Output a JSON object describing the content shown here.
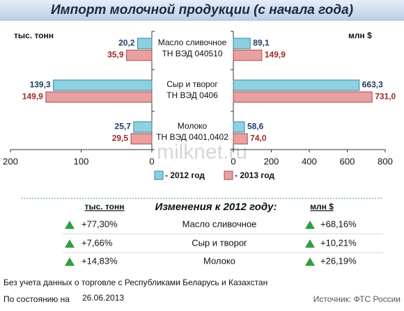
{
  "chart_data": {
    "type": "butterfly",
    "title": "Импорт молочной продукции (с начала года)",
    "categories": [
      "Масло сливочное",
      "Сыр и творог",
      "Молоко"
    ],
    "category_codes": [
      "ТН ВЭД 040510",
      "ТН ВЭД 0406",
      "ТН ВЭД 0401,0402"
    ],
    "series": [
      {
        "name": "- 2012 год",
        "color": "#8fd0e0",
        "stroke": "#2a8aa8",
        "label_color": "#1c3f66"
      },
      {
        "name": "- 2013 год",
        "color": "#e8a0a0",
        "stroke": "#b04848",
        "label_color": "#a02828"
      }
    ],
    "panels": [
      {
        "axis_label": "тыс. тонн",
        "direction": "left",
        "xlim": [
          0,
          200
        ],
        "xticks": [
          0,
          100,
          200
        ],
        "values": [
          [
            20.2,
            139.3,
            25.7
          ],
          [
            35.9,
            149.9,
            29.5
          ]
        ],
        "value_labels": [
          [
            "20,2",
            "139,3",
            "25,7"
          ],
          [
            "35,9",
            "149,9",
            "29,5"
          ]
        ]
      },
      {
        "axis_label": "млн $",
        "direction": "right",
        "xlim": [
          0,
          800
        ],
        "xticks": [
          0,
          200,
          400,
          600,
          800
        ],
        "values": [
          [
            89.1,
            663.3,
            58.6
          ],
          [
            149.9,
            731.0,
            74.0
          ]
        ],
        "value_labels": [
          [
            "89,1",
            "663,3",
            "58,6"
          ],
          [
            "149,9",
            "731,0",
            "74,0"
          ]
        ]
      }
    ],
    "watermark": "milknet.ru"
  },
  "changes": {
    "title": "Изменения к 2012 году:",
    "left_header": "тыс. тонн",
    "right_header": "млн $",
    "rows": [
      [
        "+77,30%",
        "Масло сливочное",
        "+68,16%"
      ],
      [
        "+7,66%",
        "Сыр и творог",
        "+10,21%"
      ],
      [
        "+14,83%",
        "Молоко",
        "+26,19%"
      ]
    ]
  },
  "notes": {
    "exclusion": "Без учета данных о торговле с Республиками Беларусь и Казахстан",
    "as_of_label": "По состоянию на",
    "as_of_date": "26.06.2013",
    "source": "Источник: ФТС России"
  }
}
